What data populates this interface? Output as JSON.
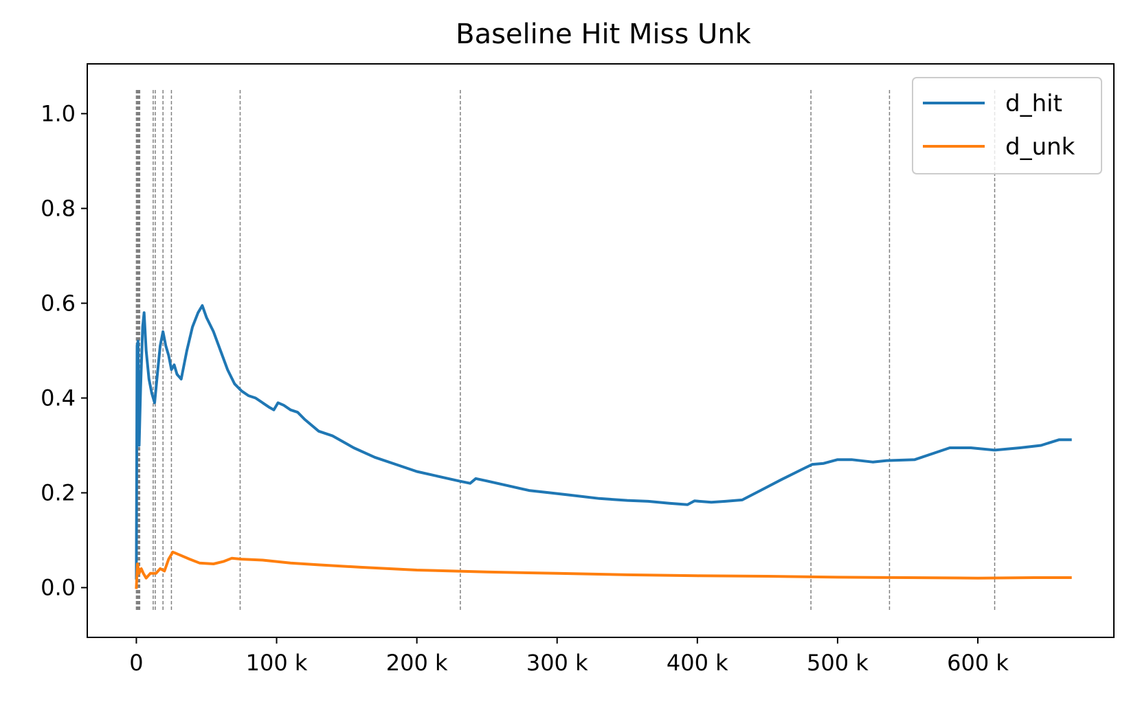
{
  "chart_data": {
    "type": "line",
    "title": "Baseline Hit Miss Unk",
    "xlabel": "",
    "ylabel": "",
    "xlim": [
      -35000,
      697000
    ],
    "ylim": [
      -0.105,
      1.105
    ],
    "x_ticks": [
      0,
      100000,
      200000,
      300000,
      400000,
      500000,
      600000
    ],
    "x_tick_labels": [
      "0",
      "100 k",
      "200 k",
      "300 k",
      "400 k",
      "500 k",
      "600 k"
    ],
    "y_ticks": [
      0.0,
      0.2,
      0.4,
      0.6,
      0.8,
      1.0
    ],
    "y_tick_labels": [
      "0.0",
      "0.2",
      "0.4",
      "0.6",
      "0.8",
      "1.0"
    ],
    "grid": false,
    "legend_position": "top-right",
    "vlines": {
      "style": "dashed",
      "color": "#808080",
      "range": [
        -0.05,
        1.05
      ],
      "x": [
        0,
        300,
        600,
        900,
        1200,
        1500,
        1800,
        2100,
        2400,
        12000,
        13500,
        19000,
        25000,
        74000,
        231000,
        481000,
        537000,
        612000
      ]
    },
    "series": [
      {
        "name": "d_hit",
        "color": "#1f77b4",
        "points": [
          [
            0,
            0.02
          ],
          [
            500,
            0.51
          ],
          [
            1200,
            0.52
          ],
          [
            2000,
            0.3
          ],
          [
            3000,
            0.42
          ],
          [
            4500,
            0.55
          ],
          [
            5500,
            0.58
          ],
          [
            7000,
            0.5
          ],
          [
            9000,
            0.44
          ],
          [
            11000,
            0.41
          ],
          [
            13000,
            0.39
          ],
          [
            15000,
            0.45
          ],
          [
            17000,
            0.51
          ],
          [
            19000,
            0.54
          ],
          [
            21000,
            0.51
          ],
          [
            23000,
            0.49
          ],
          [
            25000,
            0.46
          ],
          [
            27000,
            0.47
          ],
          [
            29000,
            0.45
          ],
          [
            32000,
            0.44
          ],
          [
            36000,
            0.5
          ],
          [
            40000,
            0.55
          ],
          [
            44000,
            0.58
          ],
          [
            47000,
            0.595
          ],
          [
            50000,
            0.57
          ],
          [
            55000,
            0.54
          ],
          [
            60000,
            0.5
          ],
          [
            65000,
            0.46
          ],
          [
            70000,
            0.43
          ],
          [
            75000,
            0.415
          ],
          [
            80000,
            0.405
          ],
          [
            85000,
            0.4
          ],
          [
            90000,
            0.39
          ],
          [
            95000,
            0.38
          ],
          [
            98000,
            0.375
          ],
          [
            101000,
            0.39
          ],
          [
            105000,
            0.385
          ],
          [
            110000,
            0.375
          ],
          [
            115000,
            0.37
          ],
          [
            120000,
            0.355
          ],
          [
            130000,
            0.33
          ],
          [
            140000,
            0.32
          ],
          [
            155000,
            0.295
          ],
          [
            170000,
            0.275
          ],
          [
            185000,
            0.26
          ],
          [
            200000,
            0.245
          ],
          [
            215000,
            0.235
          ],
          [
            230000,
            0.225
          ],
          [
            238000,
            0.22
          ],
          [
            242000,
            0.23
          ],
          [
            250000,
            0.225
          ],
          [
            265000,
            0.215
          ],
          [
            280000,
            0.205
          ],
          [
            295000,
            0.2
          ],
          [
            310000,
            0.195
          ],
          [
            330000,
            0.188
          ],
          [
            350000,
            0.184
          ],
          [
            365000,
            0.182
          ],
          [
            380000,
            0.178
          ],
          [
            393000,
            0.175
          ],
          [
            398000,
            0.183
          ],
          [
            410000,
            0.18
          ],
          [
            420000,
            0.182
          ],
          [
            432000,
            0.185
          ],
          [
            445000,
            0.205
          ],
          [
            460000,
            0.228
          ],
          [
            475000,
            0.25
          ],
          [
            482000,
            0.26
          ],
          [
            490000,
            0.262
          ],
          [
            500000,
            0.27
          ],
          [
            510000,
            0.27
          ],
          [
            525000,
            0.265
          ],
          [
            535000,
            0.268
          ],
          [
            555000,
            0.27
          ],
          [
            570000,
            0.285
          ],
          [
            580000,
            0.295
          ],
          [
            595000,
            0.295
          ],
          [
            612000,
            0.29
          ],
          [
            630000,
            0.295
          ],
          [
            645000,
            0.3
          ],
          [
            658000,
            0.312
          ],
          [
            666000,
            0.312
          ]
        ]
      },
      {
        "name": "d_unk",
        "color": "#ff7f0e",
        "points": [
          [
            0,
            0.0
          ],
          [
            800,
            0.05
          ],
          [
            2000,
            0.03
          ],
          [
            3500,
            0.04
          ],
          [
            5000,
            0.03
          ],
          [
            7000,
            0.02
          ],
          [
            10000,
            0.03
          ],
          [
            14000,
            0.03
          ],
          [
            17000,
            0.04
          ],
          [
            20000,
            0.035
          ],
          [
            23000,
            0.06
          ],
          [
            26000,
            0.075
          ],
          [
            30000,
            0.07
          ],
          [
            38000,
            0.06
          ],
          [
            45000,
            0.052
          ],
          [
            55000,
            0.05
          ],
          [
            62000,
            0.055
          ],
          [
            68000,
            0.062
          ],
          [
            75000,
            0.06
          ],
          [
            90000,
            0.058
          ],
          [
            110000,
            0.052
          ],
          [
            130000,
            0.048
          ],
          [
            160000,
            0.043
          ],
          [
            200000,
            0.037
          ],
          [
            250000,
            0.033
          ],
          [
            300000,
            0.03
          ],
          [
            350000,
            0.027
          ],
          [
            400000,
            0.025
          ],
          [
            450000,
            0.024
          ],
          [
            500000,
            0.022
          ],
          [
            550000,
            0.021
          ],
          [
            600000,
            0.02
          ],
          [
            640000,
            0.021
          ],
          [
            666000,
            0.021
          ]
        ]
      }
    ]
  }
}
